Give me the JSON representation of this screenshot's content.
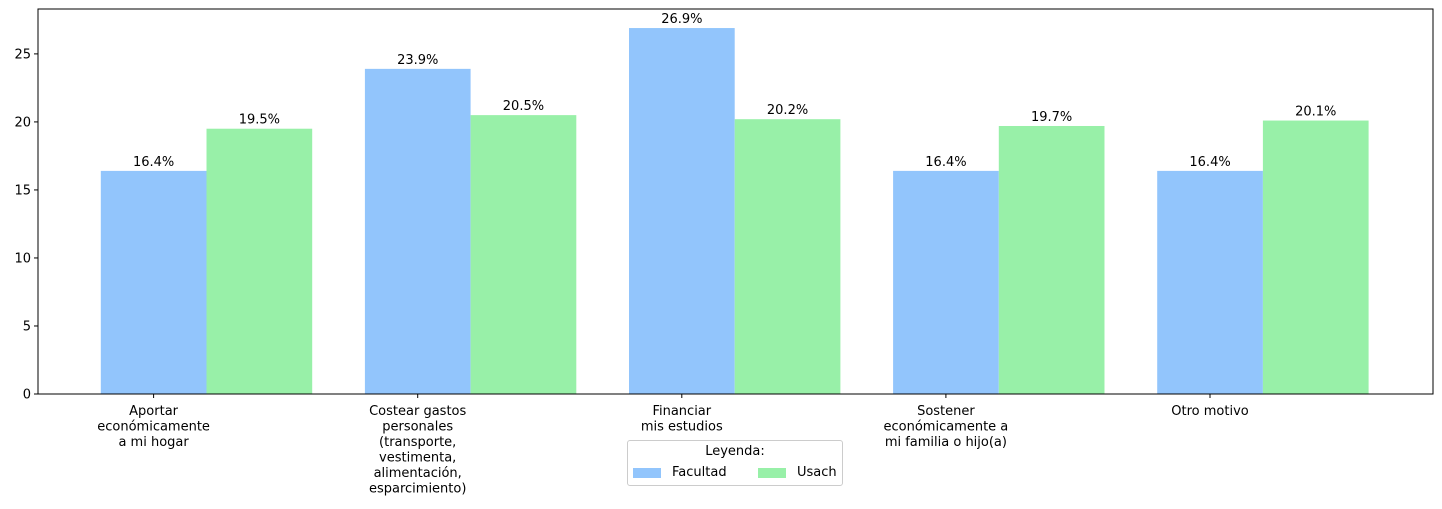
{
  "chart_data": {
    "type": "bar",
    "title": "",
    "xlabel": "",
    "ylabel": "",
    "categories": [
      [
        "Aportar",
        "económicamente",
        "a mi hogar"
      ],
      [
        "Costear gastos",
        "personales",
        "(transporte,",
        "vestimenta,",
        "alimentación,",
        "esparcimiento)"
      ],
      [
        "Financiar",
        "mis estudios"
      ],
      [
        "Sostener",
        "económicamente a",
        "mi familia o hijo(a)"
      ],
      [
        "Otro motivo"
      ]
    ],
    "series": [
      {
        "name": "Facultad",
        "color": "#92c5fc",
        "values": [
          16.4,
          23.9,
          26.9,
          16.4,
          16.4
        ],
        "labels": [
          "16.4%",
          "23.9%",
          "26.9%",
          "16.4%",
          "16.4%"
        ]
      },
      {
        "name": "Usach",
        "color": "#98f0a8",
        "values": [
          19.5,
          20.5,
          20.2,
          19.7,
          20.1
        ],
        "labels": [
          "19.5%",
          "20.5%",
          "20.2%",
          "19.7%",
          "20.1%"
        ]
      }
    ],
    "ylim": [
      0,
      28.3
    ],
    "yticks": [
      "0",
      "5",
      "10",
      "15",
      "20",
      "25"
    ],
    "grid": false,
    "legend": {
      "title": "Leyenda:",
      "placement": "bottom-center"
    }
  }
}
